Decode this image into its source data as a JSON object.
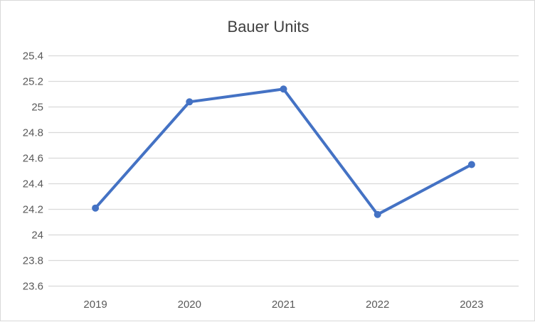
{
  "chart_data": {
    "type": "line",
    "title": "Bauer Units",
    "xlabel": "",
    "ylabel": "",
    "categories": [
      "2019",
      "2020",
      "2021",
      "2022",
      "2023"
    ],
    "series": [
      {
        "values": [
          24.21,
          25.04,
          25.14,
          24.16,
          24.55
        ],
        "color": "#4472c4"
      }
    ],
    "ylim": [
      23.6,
      25.4
    ],
    "yticks": [
      "23.6",
      "23.8",
      "24",
      "24.2",
      "24.4",
      "24.6",
      "24.8",
      "25",
      "25.2",
      "25.4"
    ],
    "grid": true,
    "legend": "none",
    "markers": true
  }
}
